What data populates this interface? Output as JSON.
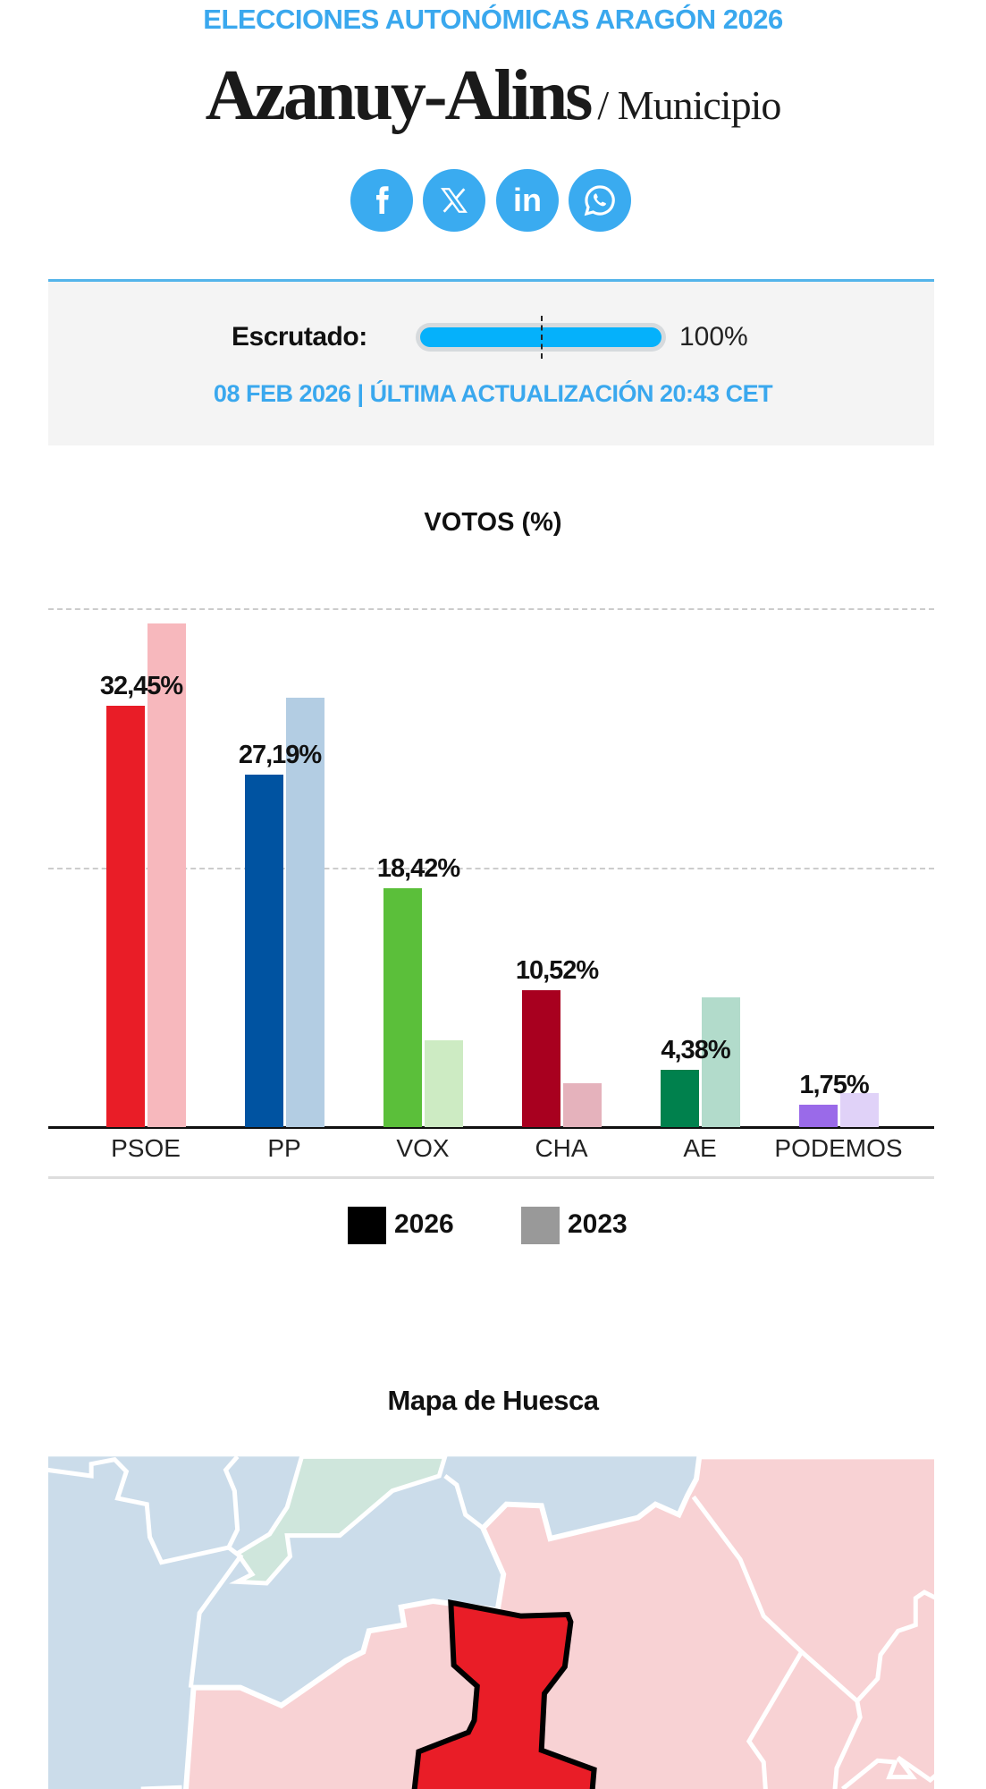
{
  "header": {
    "kicker": "ELECCIONES AUTONÓMICAS ARAGÓN 2026",
    "title": "Azanuy-Alins",
    "subtitle": "/ Municipio"
  },
  "share": [
    {
      "name": "facebook-icon",
      "glyph": "f"
    },
    {
      "name": "x-icon",
      "glyph": "𝕏"
    },
    {
      "name": "linkedin-icon",
      "glyph": "in"
    },
    {
      "name": "whatsapp-icon",
      "glyph": "✆"
    }
  ],
  "status": {
    "label": "Escrutado:",
    "percent_text": "100%",
    "progress_percent": 100,
    "date_line": "08 FEB 2026 | ÚLTIMA ACTUALIZACIÓN 20:43 CET"
  },
  "chart_data": {
    "type": "bar",
    "title": "VOTOS (%)",
    "categories": [
      "PSOE",
      "PP",
      "VOX",
      "CHA",
      "AE",
      "PODEMOS"
    ],
    "series": [
      {
        "name": "2026",
        "values": [
          32.45,
          27.19,
          18.42,
          10.52,
          4.38,
          1.75
        ],
        "labels": [
          "32,45%",
          "27,19%",
          "18,42%",
          "10,52%",
          "4,38%",
          "1,75%"
        ],
        "colors": [
          "#e91d27",
          "#0053a1",
          "#5bbf3a",
          "#a8001f",
          "#00814d",
          "#9a6ae9"
        ]
      },
      {
        "name": "2023",
        "values": [
          38.8,
          33.1,
          6.7,
          3.4,
          10.0,
          2.6
        ],
        "colors": [
          "#f7b8bd",
          "#b3cde3",
          "#cdebc3",
          "#e5b2bc",
          "#b2dbcb",
          "#e0d2f8"
        ]
      }
    ],
    "ylim": [
      0,
      40
    ],
    "gridlines": [
      20,
      40
    ],
    "legend": {
      "position": "bottom",
      "items": [
        {
          "label": "2026",
          "color": "#000000"
        },
        {
          "label": "2023",
          "color": "#999999"
        }
      ]
    }
  },
  "map": {
    "title": "Mapa de Huesca",
    "colors": {
      "pp": "#cbdcea",
      "psoe": "#f8d2d4",
      "cha": "#cfe6dc",
      "selected": "#e91d27"
    }
  }
}
